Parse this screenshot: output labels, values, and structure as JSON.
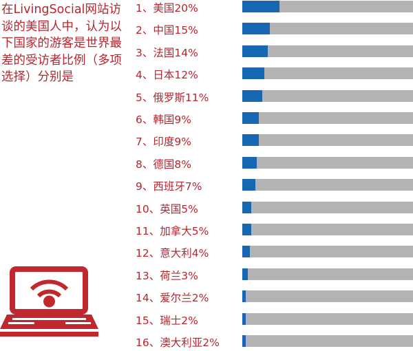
{
  "intro": "在LivingSocial网站访谈的美国人中，认为以下国家的游客是世界最差的受访者比例（多项选择）分别是",
  "icon": "laptop-wifi-icon",
  "colors": {
    "text": "#b8252c",
    "bar": "#1767b2",
    "track": "#b3b3b3",
    "icon": "#c0282d"
  },
  "chart_data": {
    "type": "bar",
    "orientation": "horizontal",
    "xlim": [
      0,
      100
    ],
    "unit": "%",
    "labels": [
      "1、美国20%",
      "2、中国15%",
      "3、法国14%",
      "4、日本12%",
      "5、俄罗斯11%",
      "6、韩国9%",
      "7、印度9%",
      "8、德国8%",
      "9、西班牙7%",
      "10、英国5%",
      "11、加拿大5%",
      "12、意大利4%",
      "13、荷兰3%",
      "14、爱尔兰2%",
      "15、瑞士2%",
      "16、澳大利亚2%"
    ],
    "categories": [
      "美国",
      "中国",
      "法国",
      "日本",
      "俄罗斯",
      "韩国",
      "印度",
      "德国",
      "西班牙",
      "英国",
      "加拿大",
      "意大利",
      "荷兰",
      "爱尔兰",
      "瑞士",
      "澳大利亚"
    ],
    "values": [
      20,
      15,
      14,
      12,
      11,
      9,
      9,
      8,
      7,
      5,
      5,
      4,
      3,
      2,
      2,
      2
    ]
  }
}
